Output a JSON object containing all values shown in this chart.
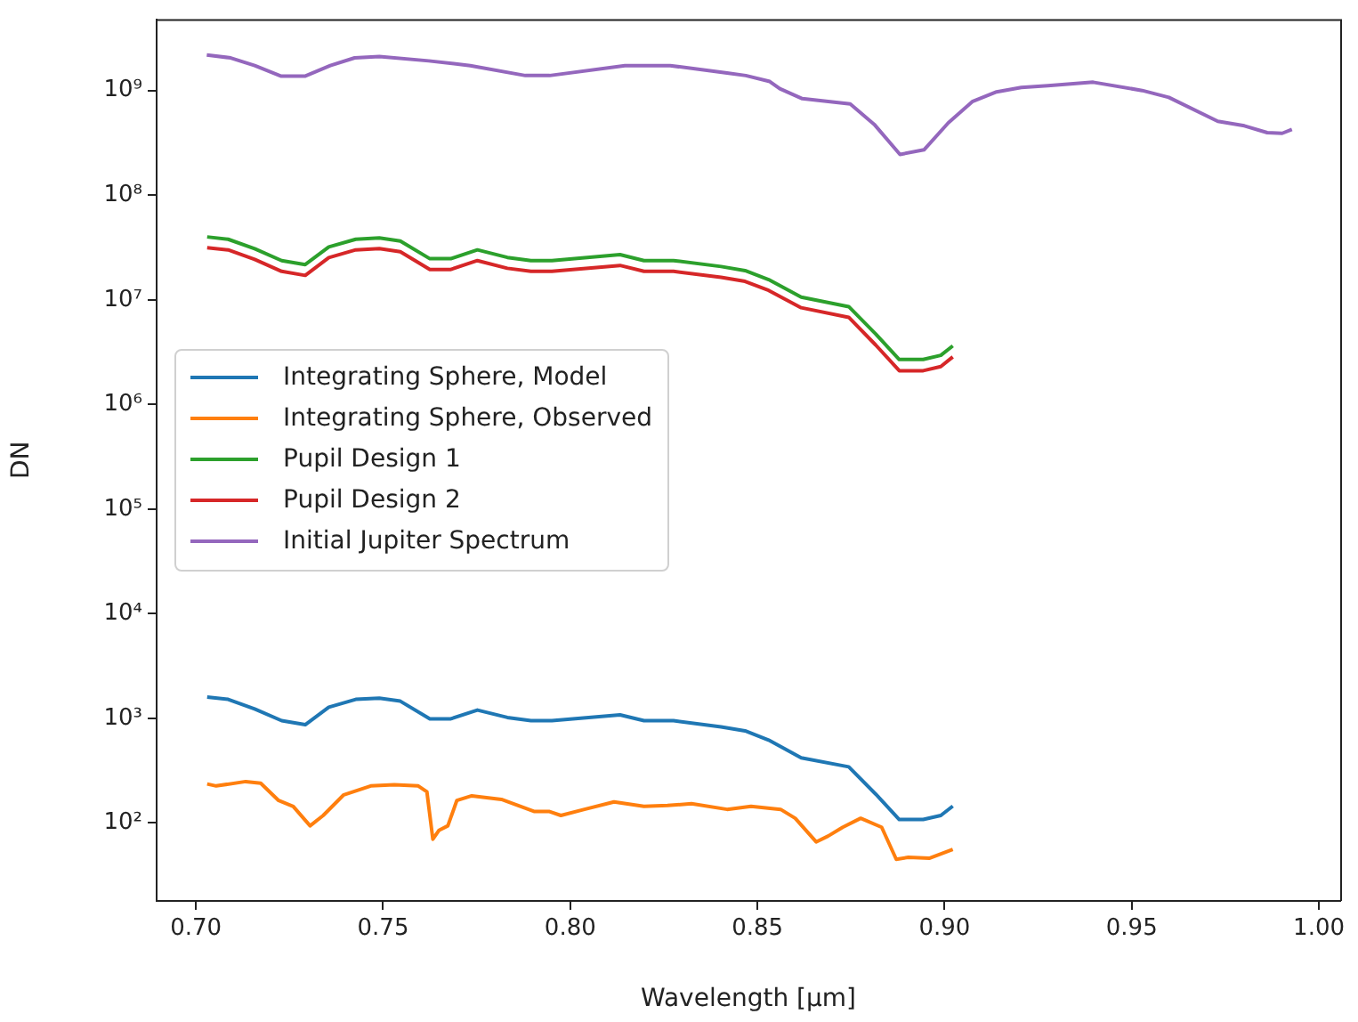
{
  "chart_data": {
    "type": "line",
    "xlabel": "Wavelength [μm]",
    "ylabel": "DN",
    "log": "y",
    "grid": false,
    "legend": "left",
    "marker": "none",
    "line_style": "solid",
    "xlim": [
      0.6895,
      1.0057
    ],
    "xticks": [
      {
        "value": 0.7,
        "label": "0.70"
      },
      {
        "value": 0.75,
        "label": "0.75"
      },
      {
        "value": 0.8,
        "label": "0.80"
      },
      {
        "value": 0.85,
        "label": "0.85"
      },
      {
        "value": 0.9,
        "label": "0.90"
      },
      {
        "value": 0.95,
        "label": "0.95"
      },
      {
        "value": 1.0,
        "label": "1.00"
      }
    ],
    "ylim": [
      18,
      4800000000
    ],
    "yticks": [
      {
        "value": 100,
        "label": "10²"
      },
      {
        "value": 1000,
        "label": "10³"
      },
      {
        "value": 10000,
        "label": "10⁴"
      },
      {
        "value": 100000,
        "label": "10⁵"
      },
      {
        "value": 1000000,
        "label": "10⁶"
      },
      {
        "value": 10000000,
        "label": "10⁷"
      },
      {
        "value": 100000000,
        "label": "10⁸"
      },
      {
        "value": 1000000000,
        "label": "10⁹"
      }
    ],
    "series": [
      {
        "name": "Integrating Sphere, Model",
        "color": "#1f77b4",
        "x": [
          0.703,
          0.7086,
          0.7157,
          0.7229,
          0.7292,
          0.7355,
          0.7427,
          0.749,
          0.7546,
          0.7625,
          0.7681,
          0.7752,
          0.7832,
          0.7895,
          0.7951,
          0.8133,
          0.8197,
          0.8276,
          0.8403,
          0.8467,
          0.853,
          0.8617,
          0.8744,
          0.8816,
          0.8879,
          0.8943,
          0.899,
          0.9022
        ],
        "values": [
          1600,
          1520,
          1230,
          950,
          870,
          1280,
          1520,
          1560,
          1460,
          990,
          990,
          1200,
          1020,
          950,
          950,
          1080,
          950,
          950,
          830,
          760,
          620,
          420,
          344,
          189,
          108,
          108,
          118,
          145
        ]
      },
      {
        "name": "Integrating Sphere, Observed",
        "color": "#ff7f0e",
        "x": [
          0.703,
          0.7054,
          0.7133,
          0.7173,
          0.7221,
          0.726,
          0.7305,
          0.734,
          0.7395,
          0.7467,
          0.753,
          0.7594,
          0.7617,
          0.7633,
          0.7649,
          0.7673,
          0.7697,
          0.7737,
          0.7816,
          0.7903,
          0.7943,
          0.7975,
          0.8038,
          0.8117,
          0.8197,
          0.826,
          0.8324,
          0.8419,
          0.8483,
          0.8562,
          0.8601,
          0.8657,
          0.8689,
          0.8728,
          0.8776,
          0.8832,
          0.8871,
          0.8903,
          0.8959,
          0.9022
        ],
        "values": [
          236,
          226,
          249,
          240,
          164,
          144,
          94,
          118,
          186,
          226,
          232,
          226,
          199,
          70,
          85,
          94,
          164,
          182,
          168,
          129,
          129,
          118,
          135,
          159,
          144,
          147,
          153,
          135,
          144,
          135,
          111,
          66,
          75,
          91,
          111,
          91,
          45,
          47,
          46,
          56
        ]
      },
      {
        "name": "Pupil Design 1",
        "color": "#2ca02c",
        "x": [
          0.703,
          0.7086,
          0.7157,
          0.7229,
          0.7292,
          0.7355,
          0.7427,
          0.749,
          0.7546,
          0.7625,
          0.7681,
          0.7752,
          0.7832,
          0.7895,
          0.7951,
          0.8133,
          0.8197,
          0.8276,
          0.8403,
          0.8467,
          0.853,
          0.8617,
          0.8744,
          0.8816,
          0.8879,
          0.8943,
          0.899,
          0.9022
        ],
        "values": [
          39900000,
          37900000,
          30800000,
          23700000,
          21700000,
          32000000,
          37900000,
          39000000,
          36500000,
          24700000,
          24700000,
          30000000,
          25400000,
          23700000,
          23700000,
          27000000,
          23700000,
          23700000,
          20800000,
          19000000,
          15600000,
          10600000,
          8600000,
          4720000,
          2690000,
          2690000,
          2950000,
          3630000
        ]
      },
      {
        "name": "Pupil Design 2",
        "color": "#d62728",
        "x": [
          0.703,
          0.7086,
          0.7157,
          0.7229,
          0.7292,
          0.7355,
          0.7427,
          0.749,
          0.7546,
          0.7625,
          0.7681,
          0.7752,
          0.7832,
          0.7895,
          0.7951,
          0.8133,
          0.8197,
          0.8276,
          0.8403,
          0.8467,
          0.853,
          0.8617,
          0.8744,
          0.8816,
          0.8879,
          0.8943,
          0.899,
          0.9022
        ],
        "values": [
          31500000,
          30000000,
          24300000,
          18700000,
          17100000,
          25300000,
          30000000,
          30800000,
          28800000,
          19500000,
          19500000,
          23700000,
          20000000,
          18700000,
          18700000,
          21300000,
          18700000,
          18700000,
          16400000,
          15000000,
          12300000,
          8400000,
          6800000,
          3700000,
          2100000,
          2100000,
          2300000,
          2850000
        ]
      },
      {
        "name": "Initial Jupiter Spectrum",
        "color": "#9467bd",
        "x": [
          0.7029,
          0.7093,
          0.7157,
          0.7228,
          0.7291,
          0.7359,
          0.7424,
          0.749,
          0.7622,
          0.7733,
          0.788,
          0.7945,
          0.8146,
          0.8267,
          0.8419,
          0.8469,
          0.8533,
          0.856,
          0.862,
          0.8748,
          0.8812,
          0.8881,
          0.8945,
          0.901,
          0.9074,
          0.9139,
          0.9205,
          0.9276,
          0.9397,
          0.9528,
          0.9599,
          0.973,
          0.9801,
          0.9862,
          0.9902,
          0.9928
        ],
        "values": [
          2190000000,
          2050000000,
          1730000000,
          1370000000,
          1370000000,
          1730000000,
          2050000000,
          2110000000,
          1920000000,
          1730000000,
          1390000000,
          1390000000,
          1730000000,
          1730000000,
          1470000000,
          1390000000,
          1220000000,
          1040000000,
          836000000,
          743000000,
          475000000,
          245000000,
          271000000,
          491000000,
          782000000,
          970000000,
          1070000000,
          1110000000,
          1200000000,
          1000000000,
          860000000,
          508000000,
          460000000,
          396000000,
          390000000,
          424000000
        ]
      }
    ]
  }
}
